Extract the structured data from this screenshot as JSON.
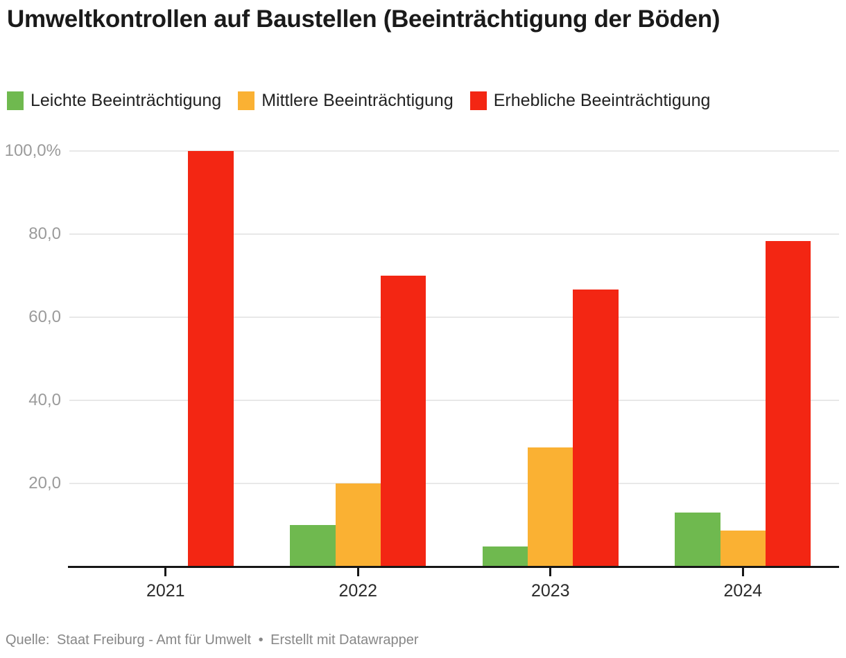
{
  "header": {
    "title": "Umweltkontrollen auf Baustellen (Beeinträchtigung der Böden)"
  },
  "legend": {
    "items": [
      {
        "label": "Leichte Beeinträchtigung",
        "color": "#6FB94F"
      },
      {
        "label": "Mittlere Beeinträchtigung",
        "color": "#FAB133"
      },
      {
        "label": "Erhebliche Beeinträchtigung",
        "color": "#F32613"
      }
    ]
  },
  "footer": {
    "source_label": "Quelle:",
    "source": "Staat Freiburg - Amt für Umwelt",
    "separator": "•",
    "attribution": "Erstellt mit Datawrapper"
  },
  "chart_data": {
    "type": "bar",
    "title": "Umweltkontrollen auf Baustellen (Beeinträchtigung der Böden)",
    "categories": [
      "2021",
      "2022",
      "2023",
      "2024"
    ],
    "series": [
      {
        "name": "Leichte Beeinträchtigung",
        "color": "#6FB94F",
        "values": [
          0,
          10,
          4.8,
          13
        ]
      },
      {
        "name": "Mittlere Beeinträchtigung",
        "color": "#FAB133",
        "values": [
          0,
          20,
          28.6,
          8.7
        ]
      },
      {
        "name": "Erhebliche Beeinträchtigung",
        "color": "#F32613",
        "values": [
          100,
          70,
          66.7,
          78.3
        ]
      }
    ],
    "unit": "%",
    "xlabel": "",
    "ylabel": "",
    "ylim": [
      0,
      100
    ],
    "yticks": [
      {
        "value": 20,
        "label": "20,0"
      },
      {
        "value": 40,
        "label": "40,0"
      },
      {
        "value": 60,
        "label": "60,0"
      },
      {
        "value": 80,
        "label": "80,0"
      },
      {
        "value": 100,
        "label": "100,0%"
      }
    ],
    "grid": true,
    "grid_color": "#e8e8e8",
    "axis_color": "#161616",
    "ytick_label_color": "#9b9b9b",
    "xtick_label_color": "#2b2b2b",
    "legend_position": "top"
  }
}
